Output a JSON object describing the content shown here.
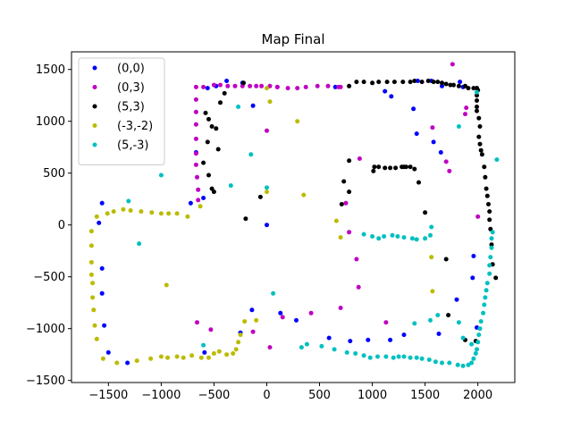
{
  "chart_data": {
    "type": "scatter",
    "title": "Map Final",
    "xlabel": "",
    "ylabel": "",
    "xlim": [
      -1850,
      2350
    ],
    "ylim": [
      -1520,
      1670
    ],
    "x_ticks": [
      -1500,
      -1000,
      -500,
      0,
      500,
      1000,
      1500,
      2000
    ],
    "y_ticks": [
      -1500,
      -1000,
      -500,
      0,
      500,
      1000,
      1500
    ],
    "grid": false,
    "legend_position": "top-left",
    "series": [
      {
        "name": "(0,0)",
        "color": "#0000ff",
        "points": [
          [
            -380,
            1390
          ],
          [
            -230,
            1370
          ],
          [
            -560,
            1320
          ],
          [
            -670,
            700
          ],
          [
            -720,
            210
          ],
          [
            -600,
            260
          ],
          [
            -480,
            1340
          ],
          [
            100,
            1330
          ],
          [
            650,
            1330
          ],
          [
            1120,
            1290
          ],
          [
            1430,
            1390
          ],
          [
            1560,
            1390
          ],
          [
            1660,
            1340
          ],
          [
            1180,
            1240
          ],
          [
            1390,
            1120
          ],
          [
            1420,
            880
          ],
          [
            1580,
            800
          ],
          [
            1650,
            700
          ],
          [
            1830,
            1380
          ],
          [
            1860,
            1330
          ],
          [
            1990,
            1320
          ],
          [
            -1560,
            210
          ],
          [
            -1590,
            20
          ],
          [
            -1560,
            -420
          ],
          [
            -1560,
            -660
          ],
          [
            -1540,
            -970
          ],
          [
            -1500,
            -1230
          ],
          [
            -1320,
            -1330
          ],
          [
            -590,
            -1230
          ],
          [
            -250,
            -1040
          ],
          [
            -140,
            -820
          ],
          [
            0,
            0
          ],
          [
            -130,
            1150
          ],
          [
            130,
            -850
          ],
          [
            280,
            -920
          ],
          [
            590,
            -1090
          ],
          [
            790,
            -1120
          ],
          [
            960,
            -1110
          ],
          [
            1170,
            -1110
          ],
          [
            1300,
            -1060
          ],
          [
            1630,
            -1050
          ],
          [
            1950,
            -510
          ],
          [
            1990,
            -990
          ],
          [
            1800,
            -720
          ],
          [
            1960,
            -300
          ]
        ]
      },
      {
        "name": "(0,3)",
        "color": "#c000c0",
        "points": [
          [
            -670,
            1330
          ],
          [
            -670,
            1210
          ],
          [
            -670,
            1090
          ],
          [
            -670,
            970
          ],
          [
            -670,
            830
          ],
          [
            -670,
            690
          ],
          [
            -670,
            580
          ],
          [
            -660,
            460
          ],
          [
            -650,
            340
          ],
          [
            -650,
            240
          ],
          [
            -600,
            1330
          ],
          [
            -500,
            1350
          ],
          [
            -440,
            1350
          ],
          [
            -370,
            1340
          ],
          [
            -300,
            1340
          ],
          [
            -230,
            1340
          ],
          [
            -160,
            1340
          ],
          [
            -100,
            1340
          ],
          [
            -50,
            1340
          ],
          [
            30,
            1340
          ],
          [
            100,
            1330
          ],
          [
            200,
            1320
          ],
          [
            290,
            1320
          ],
          [
            370,
            1330
          ],
          [
            480,
            1340
          ],
          [
            580,
            1340
          ],
          [
            680,
            1330
          ],
          [
            700,
            1330
          ],
          [
            0,
            910
          ],
          [
            750,
            210
          ],
          [
            780,
            -70
          ],
          [
            880,
            640
          ],
          [
            850,
            -330
          ],
          [
            1130,
            -940
          ],
          [
            1700,
            610
          ],
          [
            1760,
            1550
          ],
          [
            1880,
            1070
          ],
          [
            1890,
            1130
          ],
          [
            -660,
            -940
          ],
          [
            -530,
            -1010
          ],
          [
            -130,
            -1030
          ],
          [
            30,
            -1180
          ],
          [
            150,
            -890
          ],
          [
            420,
            -850
          ],
          [
            700,
            -800
          ],
          [
            870,
            -600
          ],
          [
            1570,
            940
          ],
          [
            1730,
            520
          ],
          [
            2000,
            80
          ]
        ]
      },
      {
        "name": "(5,3)",
        "color": "#000000",
        "points": [
          [
            -580,
            1080
          ],
          [
            -550,
            1020
          ],
          [
            -520,
            950
          ],
          [
            -520,
            350
          ],
          [
            -480,
            930
          ],
          [
            -460,
            730
          ],
          [
            -440,
            1180
          ],
          [
            -400,
            1270
          ],
          [
            -220,
            1370
          ],
          [
            -560,
            800
          ],
          [
            -600,
            600
          ],
          [
            -550,
            480
          ],
          [
            -500,
            320
          ],
          [
            -200,
            60
          ],
          [
            -60,
            270
          ],
          [
            780,
            1340
          ],
          [
            850,
            1380
          ],
          [
            920,
            1380
          ],
          [
            1000,
            1370
          ],
          [
            1060,
            1380
          ],
          [
            1140,
            1380
          ],
          [
            1210,
            1380
          ],
          [
            1290,
            1380
          ],
          [
            1360,
            1380
          ],
          [
            1400,
            1390
          ],
          [
            1470,
            1380
          ],
          [
            1530,
            1390
          ],
          [
            1580,
            1380
          ],
          [
            1620,
            1380
          ],
          [
            1660,
            1370
          ],
          [
            1700,
            1360
          ],
          [
            1740,
            1350
          ],
          [
            1770,
            1350
          ],
          [
            1820,
            1340
          ],
          [
            1880,
            1340
          ],
          [
            1910,
            1320
          ],
          [
            1960,
            1320
          ],
          [
            1990,
            1320
          ],
          [
            2000,
            1300
          ],
          [
            1990,
            1250
          ],
          [
            1990,
            1200
          ],
          [
            1990,
            1140
          ],
          [
            1990,
            1100
          ],
          [
            2010,
            1030
          ],
          [
            2020,
            950
          ],
          [
            2010,
            850
          ],
          [
            2020,
            780
          ],
          [
            2030,
            720
          ],
          [
            2040,
            680
          ],
          [
            2060,
            560
          ],
          [
            2070,
            460
          ],
          [
            2080,
            350
          ],
          [
            2090,
            280
          ],
          [
            2100,
            200
          ],
          [
            2110,
            130
          ],
          [
            2110,
            50
          ],
          [
            2120,
            -40
          ],
          [
            2130,
            -190
          ],
          [
            2140,
            -380
          ],
          [
            2170,
            -510
          ],
          [
            1010,
            520
          ],
          [
            1020,
            560
          ],
          [
            1060,
            560
          ],
          [
            1120,
            550
          ],
          [
            1170,
            550
          ],
          [
            1220,
            550
          ],
          [
            1280,
            560
          ],
          [
            1300,
            560
          ],
          [
            1320,
            560
          ],
          [
            1360,
            560
          ],
          [
            1400,
            540
          ],
          [
            1440,
            410
          ],
          [
            780,
            320
          ],
          [
            780,
            620
          ],
          [
            730,
            420
          ],
          [
            710,
            200
          ],
          [
            1500,
            120
          ],
          [
            1700,
            -330
          ],
          [
            1720,
            -870
          ],
          [
            1880,
            -1110
          ],
          [
            1980,
            -1120
          ]
        ]
      },
      {
        "name": "(-3,-2)",
        "color": "#bbbb00",
        "points": [
          [
            -1660,
            -60
          ],
          [
            -1660,
            -200
          ],
          [
            -1660,
            -360
          ],
          [
            -1660,
            -480
          ],
          [
            -1650,
            -560
          ],
          [
            -1650,
            -700
          ],
          [
            -1640,
            -820
          ],
          [
            -1630,
            -970
          ],
          [
            -1610,
            -1100
          ],
          [
            -1550,
            -1290
          ],
          [
            -1420,
            -1330
          ],
          [
            -1230,
            -1310
          ],
          [
            -1100,
            -1290
          ],
          [
            -1000,
            -1270
          ],
          [
            -940,
            -1280
          ],
          [
            -850,
            -1270
          ],
          [
            -790,
            -1280
          ],
          [
            -710,
            -1260
          ],
          [
            -620,
            -1280
          ],
          [
            -550,
            -1280
          ],
          [
            -500,
            -1240
          ],
          [
            -450,
            -1220
          ],
          [
            -380,
            -1250
          ],
          [
            -320,
            -1240
          ],
          [
            -290,
            -1200
          ],
          [
            -270,
            -1130
          ],
          [
            -250,
            -1060
          ],
          [
            -210,
            -930
          ],
          [
            -100,
            -920
          ],
          [
            -1610,
            80
          ],
          [
            -1510,
            110
          ],
          [
            -1450,
            130
          ],
          [
            -1360,
            150
          ],
          [
            -1290,
            140
          ],
          [
            -1190,
            130
          ],
          [
            -1090,
            120
          ],
          [
            -1000,
            110
          ],
          [
            -930,
            110
          ],
          [
            -850,
            110
          ],
          [
            -750,
            80
          ],
          [
            -950,
            -580
          ],
          [
            -630,
            180
          ],
          [
            0,
            1320
          ],
          [
            30,
            1190
          ],
          [
            290,
            1000
          ],
          [
            0,
            320
          ],
          [
            350,
            290
          ],
          [
            660,
            40
          ],
          [
            700,
            -120
          ],
          [
            1560,
            -310
          ],
          [
            1570,
            -640
          ]
        ]
      },
      {
        "name": "(5,-3)",
        "color": "#00c0c0",
        "points": [
          [
            -270,
            1140
          ],
          [
            -150,
            680
          ],
          [
            -1000,
            480
          ],
          [
            -1210,
            -180
          ],
          [
            -1310,
            230
          ],
          [
            -340,
            380
          ],
          [
            0,
            360
          ],
          [
            60,
            -660
          ],
          [
            380,
            -1150
          ],
          [
            520,
            -1170
          ],
          [
            640,
            -1200
          ],
          [
            760,
            -1230
          ],
          [
            840,
            -1240
          ],
          [
            920,
            -1260
          ],
          [
            980,
            -1280
          ],
          [
            1050,
            -1270
          ],
          [
            1130,
            -1270
          ],
          [
            1200,
            -1280
          ],
          [
            1250,
            -1270
          ],
          [
            1300,
            -1270
          ],
          [
            1360,
            -1280
          ],
          [
            1420,
            -1280
          ],
          [
            1470,
            -1290
          ],
          [
            1540,
            -1300
          ],
          [
            1600,
            -1320
          ],
          [
            1660,
            -1330
          ],
          [
            1730,
            -1330
          ],
          [
            1810,
            -1350
          ],
          [
            1860,
            -1360
          ],
          [
            1910,
            -1350
          ],
          [
            1940,
            -1330
          ],
          [
            1960,
            -1290
          ],
          [
            1980,
            -1240
          ],
          [
            1990,
            -1200
          ],
          [
            2000,
            -1130
          ],
          [
            2010,
            -1060
          ],
          [
            2020,
            -1000
          ],
          [
            2030,
            -930
          ],
          [
            2050,
            -850
          ],
          [
            2060,
            -770
          ],
          [
            2070,
            -700
          ],
          [
            2080,
            -630
          ],
          [
            2090,
            -560
          ],
          [
            2110,
            -470
          ],
          [
            2110,
            -390
          ],
          [
            2120,
            -310
          ],
          [
            2130,
            -220
          ],
          [
            2130,
            -130
          ],
          [
            2140,
            -70
          ],
          [
            2180,
            630
          ],
          [
            1820,
            950
          ],
          [
            1990,
            1280
          ],
          [
            920,
            -90
          ],
          [
            1000,
            -110
          ],
          [
            1060,
            -130
          ],
          [
            1110,
            -110
          ],
          [
            1190,
            -100
          ],
          [
            1240,
            -110
          ],
          [
            1300,
            -120
          ],
          [
            1380,
            -130
          ],
          [
            1420,
            -140
          ],
          [
            1500,
            -130
          ],
          [
            1550,
            -100
          ],
          [
            1560,
            -20
          ],
          [
            1620,
            -870
          ],
          [
            1400,
            -950
          ],
          [
            1550,
            -920
          ],
          [
            1820,
            -940
          ],
          [
            -600,
            -1160
          ],
          [
            330,
            -1180
          ],
          [
            1860,
            -1090
          ],
          [
            1940,
            -1150
          ]
        ]
      }
    ]
  }
}
